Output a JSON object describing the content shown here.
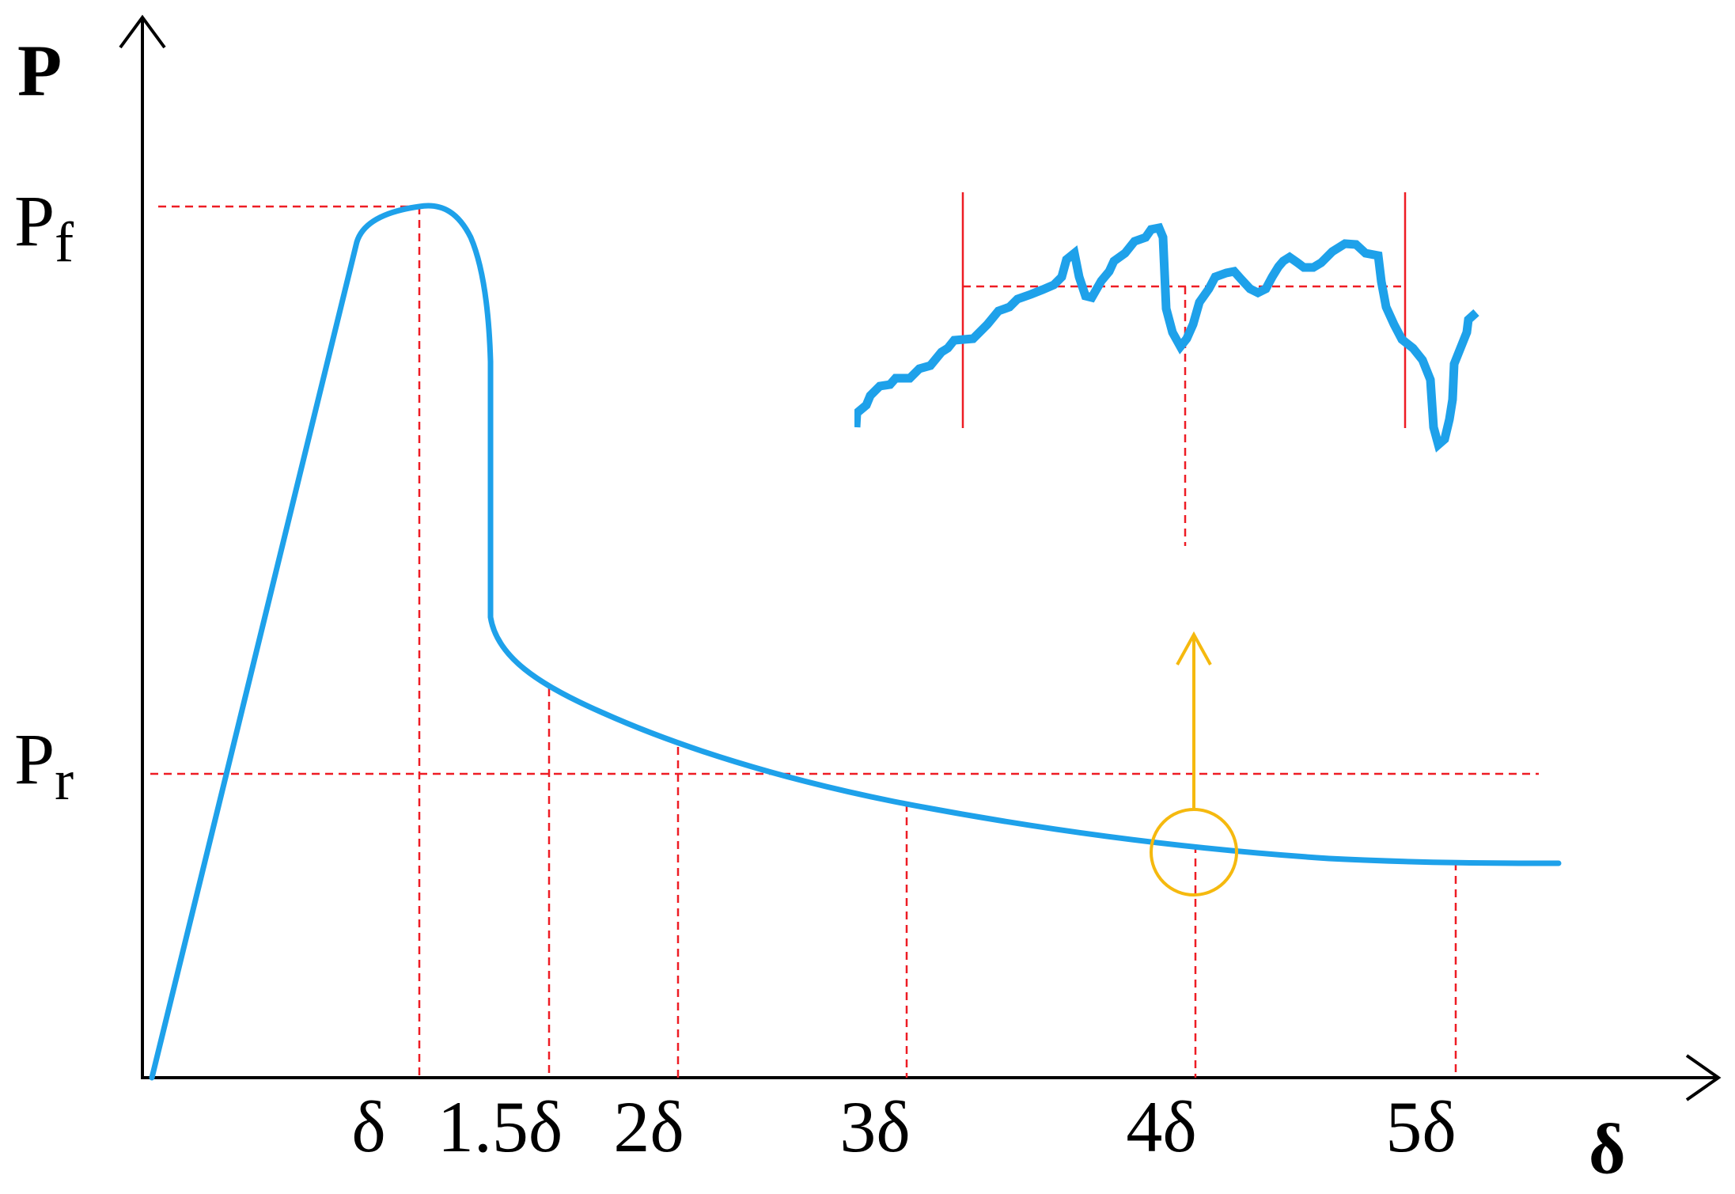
{
  "axes": {
    "y_label": "P",
    "x_label": "δ"
  },
  "y_ticks": {
    "pf": {
      "base": "P",
      "sub": "f"
    },
    "pr": {
      "base": "P",
      "sub": "r"
    }
  },
  "x_ticks": [
    "δ",
    "1.5δ",
    "2δ",
    "3δ",
    "4δ",
    "5δ"
  ],
  "colors": {
    "curve": "#1ea1ea",
    "guide": "#ee1c24",
    "highlight": "#f5b90f",
    "axis": "#000000"
  },
  "icons": {
    "highlight_marker": "circle-marker-icon",
    "pointer": "arrow-up-icon"
  }
}
